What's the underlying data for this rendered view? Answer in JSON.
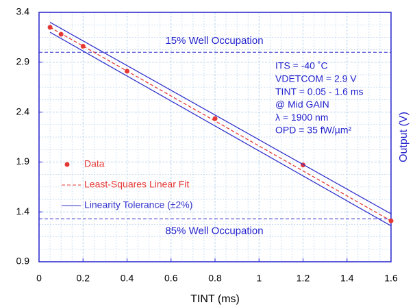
{
  "chart_data": {
    "type": "line",
    "x_label": "TINT (ms)",
    "y_label": "Output (V)",
    "xlim": [
      0,
      1.6
    ],
    "xticks": [
      0,
      0.2,
      0.4,
      0.6,
      0.8,
      1,
      1.2,
      1.4,
      1.6
    ],
    "ylim": [
      0.9,
      3.4
    ],
    "yticks": [
      0.9,
      1.4,
      1.9,
      2.4,
      2.9,
      3.4
    ],
    "grid": true,
    "minor_grid": true,
    "legend": "lower left",
    "series": [
      {
        "name": "Data",
        "color": "#e53935",
        "style": "marker",
        "x": [
          0.05,
          0.1,
          0.2,
          0.4,
          0.8,
          1.2,
          1.6
        ],
        "values": [
          3.25,
          3.18,
          3.06,
          2.81,
          2.335,
          1.87,
          1.31
        ]
      },
      {
        "name": "Least-Squares Linear Fit",
        "color": "#e53935",
        "style": "dashed",
        "x": [
          0.05,
          1.6
        ],
        "values": [
          3.25,
          1.31
        ]
      },
      {
        "name": "Linearity Tolerance (±2%)",
        "color": "#3333cc",
        "style": "band",
        "x": [
          0.05,
          1.6
        ],
        "values": [
          3.3,
          1.38
        ],
        "lower": [
          3.2,
          1.26
        ]
      }
    ],
    "reference_lines": [
      {
        "value": 3.0,
        "label": "15% Well Occupation"
      },
      {
        "value": 1.33,
        "label": "85% Well Occupation"
      }
    ],
    "annotations": [
      "ITS = -40 ˚C",
      "VDETCOM = 2.9 V",
      "TINT = 0.05 - 1.6 ms",
      "@ Mid GAIN",
      "λ = 1900 nm",
      "OPD = 35 fW/µm²"
    ]
  }
}
